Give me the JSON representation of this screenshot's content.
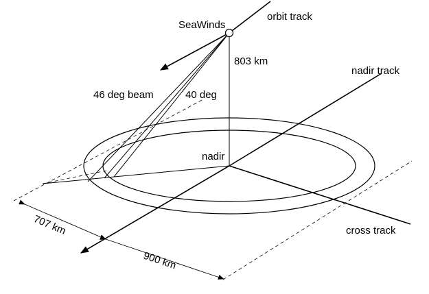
{
  "labels": {
    "instrument": "SeaWinds",
    "orbit_track": "orbit track",
    "altitude": "803 km",
    "nadir_track": "nadir track",
    "outer_beam": "46 deg beam",
    "inner_beam": "40 deg",
    "nadir": "nadir",
    "inner_swath": "707 km",
    "outer_swath": "900 km",
    "cross_track": "cross track"
  },
  "colors": {
    "ink": "#000000",
    "background": "#ffffff"
  }
}
